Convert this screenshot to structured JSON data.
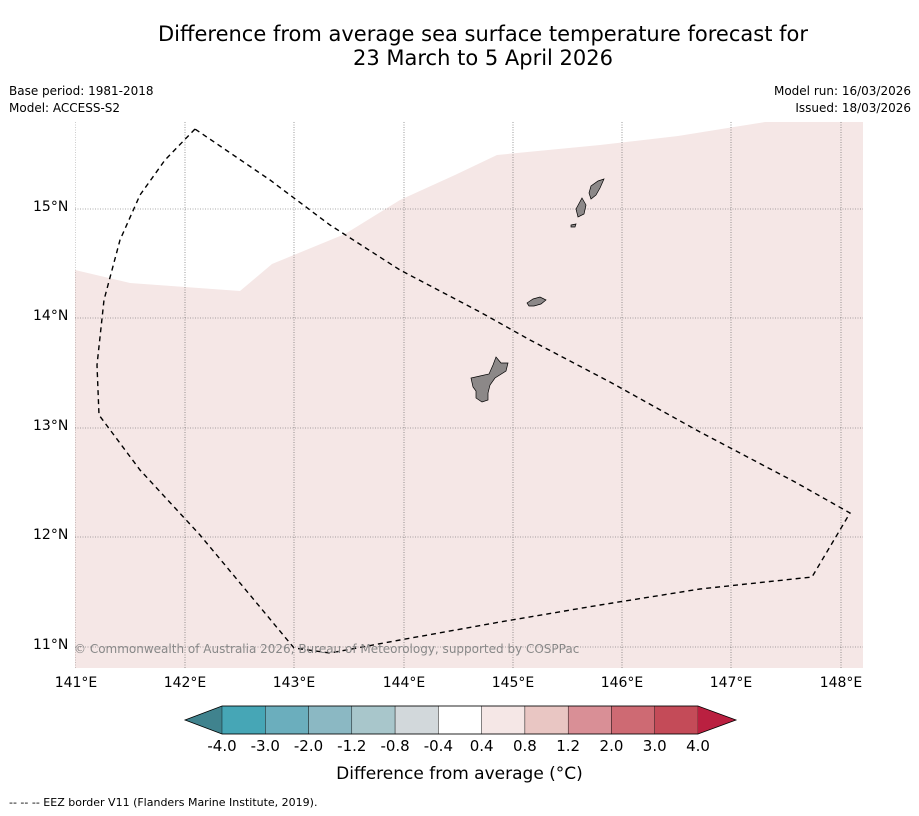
{
  "title_line1": "Difference from average sea surface temperature forecast for",
  "title_line2": "23 March to 5 April 2026",
  "meta": {
    "base_period": "Base period: 1981-2018",
    "model": "Model: ACCESS-S2",
    "model_run": "Model run: 16/03/2026",
    "issued": "Issued: 18/03/2026"
  },
  "copyright": "© Commonwealth of Australia 2026, Bureau of Meteorology, supported by COSPPac",
  "map": {
    "lat_ticks": [
      "15°N",
      "14°N",
      "13°N",
      "12°N",
      "11°N"
    ],
    "lon_ticks": [
      "141°E",
      "142°E",
      "143°E",
      "144°E",
      "145°E",
      "146°E",
      "147°E",
      "148°E"
    ],
    "colors": {
      "sea_anomaly_fill": "#f5e7e6",
      "land": "#8c8888",
      "grid": "#555555"
    }
  },
  "colorbar": {
    "label": "Difference from average (°C)",
    "ticks": [
      "-4.0",
      "-3.0",
      "-2.0",
      "-1.2",
      "-0.8",
      "-0.4",
      "0.4",
      "0.8",
      "1.2",
      "2.0",
      "3.0",
      "4.0"
    ],
    "colors": [
      "#46a6b6",
      "#6baebd",
      "#8bb8c3",
      "#a8c6cb",
      "#d2d8db",
      "#ffffff",
      "#f5e7e6",
      "#e9c6c3",
      "#d98f96",
      "#ce6a73",
      "#c44b58"
    ],
    "under_color": "#40838e",
    "over_color": "#ba2040"
  },
  "footer": "--  --  -- EEZ border V11 (Flanders Marine Institute, 2019)."
}
